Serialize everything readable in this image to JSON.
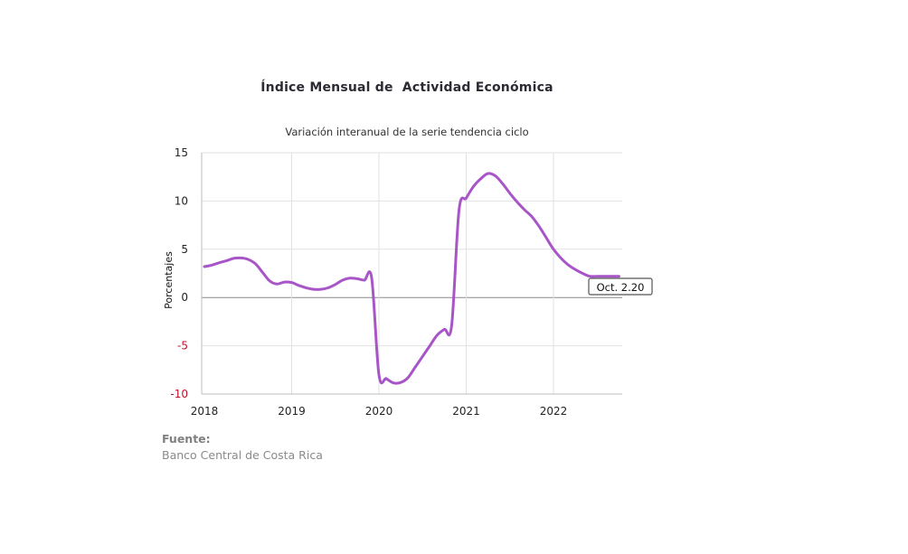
{
  "chart_data": {
    "type": "line",
    "title": "Índice Mensual de  Actividad Económica",
    "subtitle": "Variación interanual de la serie tendencia ciclo",
    "ylabel": "Porcentajes",
    "xlabel": "",
    "ylim": [
      -10,
      15
    ],
    "y_ticks": [
      "15",
      "10",
      "5",
      "0",
      "-5",
      "-10"
    ],
    "x_ticks": [
      "2018",
      "2019",
      "2020",
      "2021",
      "2022"
    ],
    "grid": true,
    "color": "#a855c8",
    "series": [
      {
        "x": [
          "2018-01",
          "2018-02",
          "2018-03",
          "2018-04",
          "2018-05",
          "2018-06",
          "2018-07",
          "2018-08",
          "2018-09",
          "2018-10",
          "2018-11",
          "2018-12",
          "2019-01",
          "2019-02",
          "2019-03",
          "2019-04",
          "2019-05",
          "2019-06",
          "2019-07",
          "2019-08",
          "2019-09",
          "2019-10",
          "2019-11",
          "2019-12",
          "2020-01",
          "2020-02",
          "2020-03",
          "2020-04",
          "2020-05",
          "2020-06",
          "2020-07",
          "2020-08",
          "2020-09",
          "2020-10",
          "2020-11",
          "2020-12",
          "2021-01",
          "2021-02",
          "2021-03",
          "2021-04",
          "2021-05",
          "2021-06",
          "2021-07",
          "2021-08",
          "2021-09",
          "2021-10",
          "2021-11",
          "2021-12",
          "2022-01",
          "2022-02",
          "2022-03",
          "2022-04",
          "2022-05",
          "2022-06",
          "2022-07",
          "2022-08",
          "2022-09",
          "2022-10"
        ],
        "values": [
          3.2,
          3.35,
          3.6,
          3.8,
          4.05,
          4.1,
          3.95,
          3.5,
          2.6,
          1.7,
          1.4,
          1.6,
          1.55,
          1.25,
          1.0,
          0.85,
          0.85,
          1.0,
          1.35,
          1.8,
          2.0,
          1.95,
          1.8,
          2.0,
          -8.0,
          -8.4,
          -8.85,
          -8.8,
          -8.3,
          -7.2,
          -6.1,
          -5.0,
          -3.9,
          -3.3,
          -2.9,
          9.0,
          10.3,
          11.5,
          12.3,
          12.85,
          12.6,
          11.8,
          10.8,
          9.9,
          9.1,
          8.4,
          7.4,
          6.2,
          5.0,
          4.1,
          3.4,
          2.9,
          2.5,
          2.2,
          2.2,
          2.2,
          2.2,
          2.2
        ]
      }
    ],
    "annotation": "Oct. 2.20"
  },
  "source": {
    "label": "Fuente:",
    "value": "Banco Central de Costa Rica"
  }
}
